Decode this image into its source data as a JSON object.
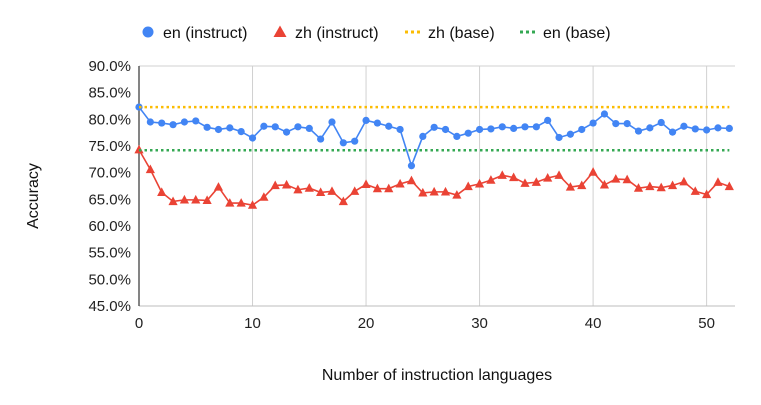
{
  "chart_data": {
    "type": "line",
    "title": "",
    "xlabel": "Number of instruction languages",
    "ylabel": "Accuracy",
    "xlim": [
      0,
      52.5
    ],
    "ylim": [
      45,
      90
    ],
    "x_ticks": [
      0,
      10,
      20,
      30,
      40,
      50
    ],
    "y_ticks": [
      45,
      50,
      55,
      60,
      65,
      70,
      75,
      80,
      85,
      90
    ],
    "y_tick_labels": [
      "45.0%",
      "50.0%",
      "55.0%",
      "60.0%",
      "65.0%",
      "70.0%",
      "75.0%",
      "80.0%",
      "85.0%",
      "90.0%"
    ],
    "grid": "vertical",
    "legend_position": "top",
    "series": [
      {
        "name": "en (instruct)",
        "color": "#4285F4",
        "marker": "circle",
        "style": "solid",
        "x": [
          0,
          1,
          2,
          3,
          4,
          5,
          6,
          7,
          8,
          9,
          10,
          11,
          12,
          13,
          14,
          15,
          16,
          17,
          18,
          19,
          20,
          21,
          22,
          23,
          24,
          25,
          26,
          27,
          28,
          29,
          30,
          31,
          32,
          33,
          34,
          35,
          36,
          37,
          38,
          39,
          40,
          41,
          42,
          43,
          44,
          45,
          46,
          47,
          48,
          49,
          50,
          51,
          52
        ],
        "values": [
          82.3,
          79.5,
          79.3,
          79.0,
          79.5,
          79.7,
          78.5,
          78.1,
          78.4,
          77.7,
          76.5,
          78.7,
          78.6,
          77.6,
          78.6,
          78.3,
          76.3,
          79.5,
          75.6,
          75.9,
          79.8,
          79.3,
          78.7,
          78.1,
          71.3,
          76.8,
          78.5,
          78.1,
          76.8,
          77.4,
          78.1,
          78.2,
          78.6,
          78.3,
          78.6,
          78.6,
          79.8,
          76.6,
          77.2,
          78.1,
          79.3,
          81.0,
          79.2,
          79.2,
          77.8,
          78.4,
          79.4,
          77.6,
          78.7,
          78.2,
          78.0,
          78.4,
          78.3
        ]
      },
      {
        "name": "zh (instruct)",
        "color": "#EA4335",
        "marker": "triangle",
        "style": "solid",
        "x": [
          0,
          1,
          2,
          3,
          4,
          5,
          6,
          7,
          8,
          9,
          10,
          11,
          12,
          13,
          14,
          15,
          16,
          17,
          18,
          19,
          20,
          21,
          22,
          23,
          24,
          25,
          26,
          27,
          28,
          29,
          30,
          31,
          32,
          33,
          34,
          35,
          36,
          37,
          38,
          39,
          40,
          41,
          42,
          43,
          44,
          45,
          46,
          47,
          48,
          49,
          50,
          51,
          52
        ],
        "values": [
          74.3,
          70.6,
          66.3,
          64.6,
          64.9,
          64.9,
          64.8,
          67.3,
          64.3,
          64.3,
          63.9,
          65.4,
          67.6,
          67.7,
          66.8,
          67.1,
          66.3,
          66.5,
          64.6,
          66.5,
          67.8,
          67.0,
          67.0,
          67.9,
          68.5,
          66.2,
          66.4,
          66.4,
          65.8,
          67.4,
          67.9,
          68.6,
          69.5,
          69.1,
          68.0,
          68.2,
          69.0,
          69.5,
          67.3,
          67.6,
          70.1,
          67.7,
          68.8,
          68.7,
          67.1,
          67.4,
          67.2,
          67.6,
          68.3,
          66.5,
          65.9,
          68.2,
          67.4
        ]
      },
      {
        "name": "zh (base)",
        "color": "#FBBC04",
        "marker": "none",
        "style": "dotted",
        "x": [
          0,
          52
        ],
        "values": [
          82.3,
          82.3
        ]
      },
      {
        "name": "en (base)",
        "color": "#34A853",
        "marker": "none",
        "style": "dotted",
        "x": [
          0,
          52
        ],
        "values": [
          74.2,
          74.2
        ]
      }
    ]
  }
}
